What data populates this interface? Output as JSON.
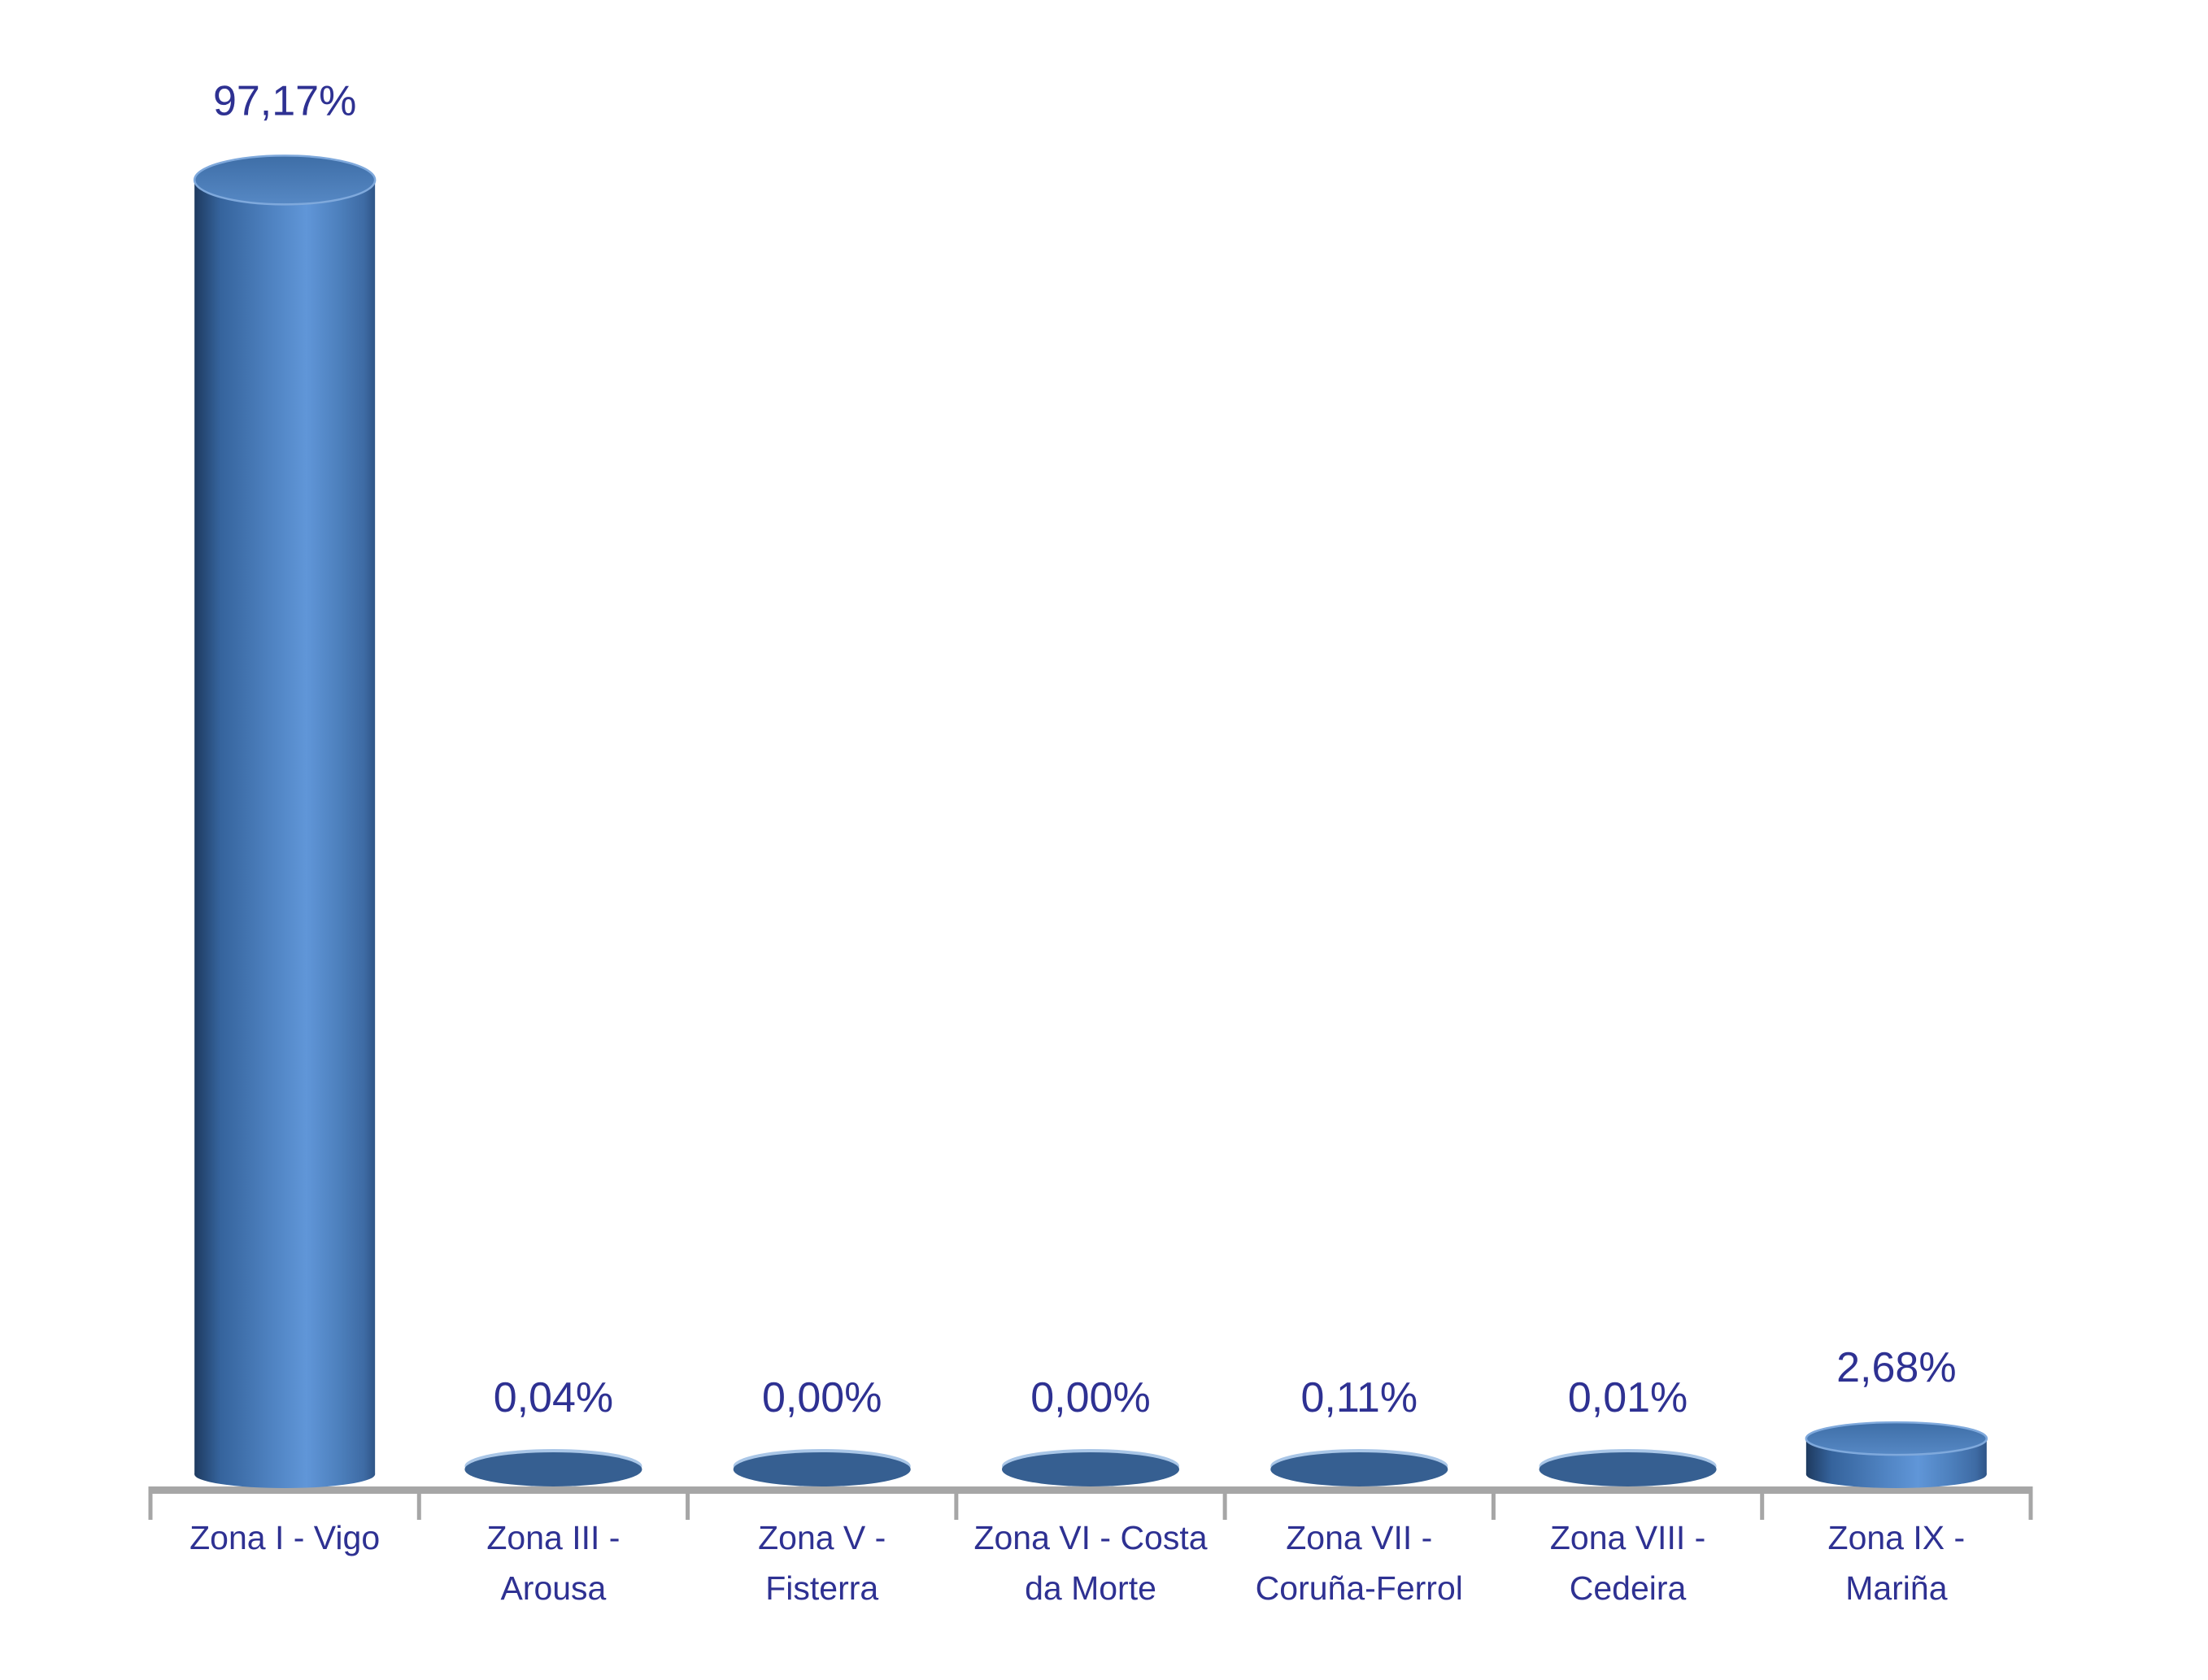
{
  "page": {
    "background": "#ffffff"
  },
  "chart_data": {
    "type": "bar",
    "subtype": "3d-cylinder-vertical",
    "title": "",
    "xlabel": "",
    "ylabel": "",
    "ylim": [
      0,
      100
    ],
    "grid": false,
    "legend": "none",
    "value_format": "percent, comma decimal, 2 dp",
    "categories": [
      "Zona I - Vigo",
      "Zona III - Arousa",
      "Zona V - Fisterra",
      "Zona VI - Costa da Morte",
      "Zona VII - Coruña-Ferrol",
      "Zona VIII - Cedeira",
      "Zona IX - Mariña"
    ],
    "category_label_lines": [
      [
        "Zona I - Vigo"
      ],
      [
        "Zona III -",
        "Arousa"
      ],
      [
        "Zona V -",
        "Fisterra"
      ],
      [
        "Zona VI - Costa",
        "da Morte"
      ],
      [
        "Zona VII -",
        "Coruña-Ferrol"
      ],
      [
        "Zona VIII -",
        "Cedeira"
      ],
      [
        "Zona IX -",
        "Mariña"
      ]
    ],
    "values": [
      97.17,
      0.04,
      0.0,
      0.0,
      0.11,
      0.01,
      2.68
    ],
    "value_labels": [
      "97,17%",
      "0,04%",
      "0,00%",
      "0,00%",
      "0,11%",
      "0,01%",
      "2,68%"
    ],
    "colors": {
      "bar_body_gradient": [
        "#1e3a5f",
        "#35639c",
        "#5185c4",
        "#6096d8",
        "#4d80bd",
        "#3e6ba4",
        "#2f5587"
      ],
      "bar_top_face_gradient": [
        "#3e6ea7",
        "#5688c4"
      ],
      "bar_top_rim": "#7fa9dc",
      "flat_ellipse": "#365f91",
      "flat_ellipse_highlight": "#a9c6e7",
      "label_text": "#2e3192",
      "axis_line": "#a6a6a6"
    }
  }
}
